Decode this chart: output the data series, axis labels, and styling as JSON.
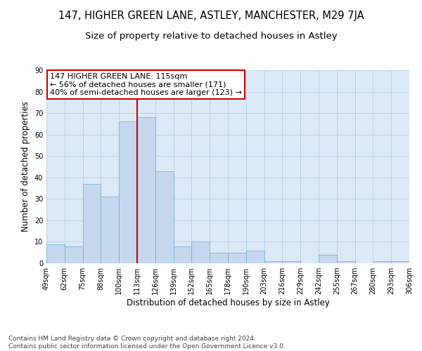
{
  "title": "147, HIGHER GREEN LANE, ASTLEY, MANCHESTER, M29 7JA",
  "subtitle": "Size of property relative to detached houses in Astley",
  "xlabel": "Distribution of detached houses by size in Astley",
  "ylabel": "Number of detached properties",
  "footer_line1": "Contains HM Land Registry data © Crown copyright and database right 2024.",
  "footer_line2": "Contains public sector information licensed under the Open Government Licence v3.0.",
  "annotation_line1": "147 HIGHER GREEN LANE: 115sqm",
  "annotation_line2": "← 56% of detached houses are smaller (171)",
  "annotation_line3": "40% of semi-detached houses are larger (123) →",
  "bar_values": [
    9,
    8,
    37,
    31,
    66,
    68,
    43,
    8,
    10,
    5,
    5,
    6,
    1,
    1,
    0,
    4,
    1,
    0,
    1,
    1
  ],
  "bar_labels": [
    "49sqm",
    "62sqm",
    "75sqm",
    "88sqm",
    "100sqm",
    "113sqm",
    "126sqm",
    "139sqm",
    "152sqm",
    "165sqm",
    "178sqm",
    "190sqm",
    "203sqm",
    "216sqm",
    "229sqm",
    "242sqm",
    "255sqm",
    "267sqm",
    "280sqm",
    "293sqm",
    "306sqm"
  ],
  "bar_color": "#c5d8f0",
  "bar_edge_color": "#6aaed6",
  "vline_color": "#cc0000",
  "ylim": [
    0,
    90
  ],
  "yticks": [
    0,
    10,
    20,
    30,
    40,
    50,
    60,
    70,
    80,
    90
  ],
  "background_color": "#ffffff",
  "axes_bg_color": "#dce9f7",
  "grid_color": "#b8cfe8",
  "annotation_box_color": "#ffffff",
  "annotation_box_edge_color": "#cc0000",
  "title_fontsize": 10.5,
  "subtitle_fontsize": 9.5,
  "axis_label_fontsize": 8.5,
  "tick_fontsize": 7,
  "footer_fontsize": 6.5,
  "annotation_fontsize": 8
}
